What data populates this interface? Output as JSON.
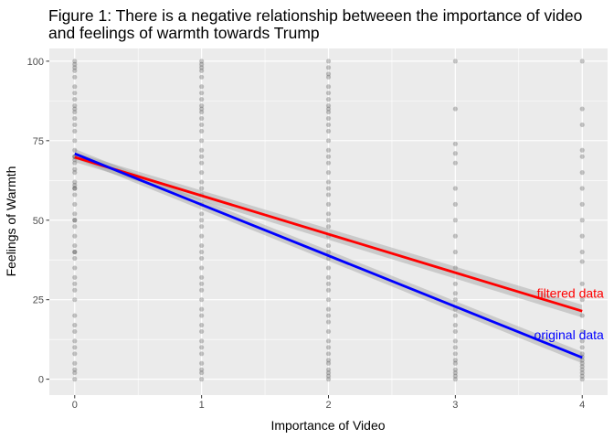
{
  "chart_data": {
    "type": "scatter",
    "title_line1": "Figure 1: There is a negative relationship betweeen the importance of video",
    "title_line2": "and feelings of warmth towards Trump",
    "xlabel": "Importance of Video",
    "ylabel": "Feelings of Warmth",
    "xlim": [
      -0.2,
      4.2
    ],
    "ylim": [
      -5,
      104
    ],
    "x_ticks": [
      0,
      1,
      2,
      3,
      4
    ],
    "y_ticks": [
      0,
      25,
      50,
      75,
      100
    ],
    "x_tick_labels": [
      "0",
      "1",
      "2",
      "3",
      "4"
    ],
    "y_tick_labels": [
      "0",
      "25",
      "50",
      "75",
      "100"
    ],
    "grid": true,
    "background": "#ebebeb",
    "points": [
      {
        "x": 0,
        "values": [
          100,
          99,
          98,
          97,
          95,
          92,
          90,
          88,
          86,
          85,
          84,
          82,
          80,
          78,
          75,
          72,
          70,
          70,
          69,
          68,
          66,
          65,
          62,
          61,
          60,
          60,
          58,
          55,
          52,
          50,
          50,
          48,
          45,
          42,
          40,
          40,
          38,
          35,
          32,
          30,
          28,
          25,
          20,
          17,
          15,
          12,
          10,
          8,
          5,
          3,
          2,
          0
        ]
      },
      {
        "x": 1,
        "values": [
          100,
          99,
          98,
          97,
          95,
          92,
          90,
          88,
          86,
          85,
          84,
          82,
          80,
          78,
          75,
          72,
          70,
          68,
          65,
          62,
          60,
          58,
          55,
          52,
          50,
          48,
          45,
          42,
          40,
          38,
          35,
          32,
          30,
          28,
          25,
          22,
          20,
          17,
          15,
          12,
          10,
          8,
          5,
          3,
          2,
          0
        ]
      },
      {
        "x": 2,
        "values": [
          100,
          98,
          96,
          95,
          92,
          90,
          88,
          86,
          85,
          84,
          82,
          80,
          78,
          75,
          72,
          70,
          68,
          65,
          62,
          60,
          58,
          55,
          52,
          50,
          48,
          45,
          42,
          40,
          38,
          35,
          32,
          30,
          28,
          25,
          22,
          20,
          18,
          15,
          12,
          10,
          8,
          6,
          5,
          3,
          2,
          1,
          0
        ]
      },
      {
        "x": 3,
        "values": [
          100,
          85,
          74,
          71,
          68,
          60,
          55,
          50,
          45,
          40,
          35,
          30,
          27,
          25,
          22,
          20,
          17,
          15,
          12,
          10,
          8,
          6,
          5,
          3,
          2,
          1,
          0
        ]
      },
      {
        "x": 4,
        "values": [
          100,
          85,
          80,
          72,
          70,
          65,
          60,
          55,
          50,
          45,
          40,
          37,
          30,
          25,
          20,
          15,
          12,
          10,
          8,
          7,
          6,
          5,
          4,
          3,
          2,
          1,
          0
        ]
      }
    ],
    "point_color": "#000000",
    "lines": [
      {
        "name": "filtered data",
        "color": "#ff0000",
        "x": [
          0,
          4
        ],
        "y": [
          69.8,
          21.4
        ],
        "ci_x": [
          0,
          4
        ],
        "ci_y_hi": [
          71.3,
          23.4
        ],
        "ci_y_lo": [
          68.3,
          19.4
        ]
      },
      {
        "name": "original data",
        "color": "#0000ff",
        "x": [
          0,
          4
        ],
        "y": [
          70.9,
          6.8
        ],
        "ci_x": [
          0,
          4
        ],
        "ci_y_hi": [
          72.4,
          8.6
        ],
        "ci_y_lo": [
          69.4,
          5.0
        ]
      }
    ],
    "annotations": [
      {
        "text": "filtered data",
        "color": "#ff0000",
        "x": 4.17,
        "y": 27
      },
      {
        "text": "original data",
        "color": "#0000ff",
        "x": 4.17,
        "y": 14
      }
    ]
  }
}
